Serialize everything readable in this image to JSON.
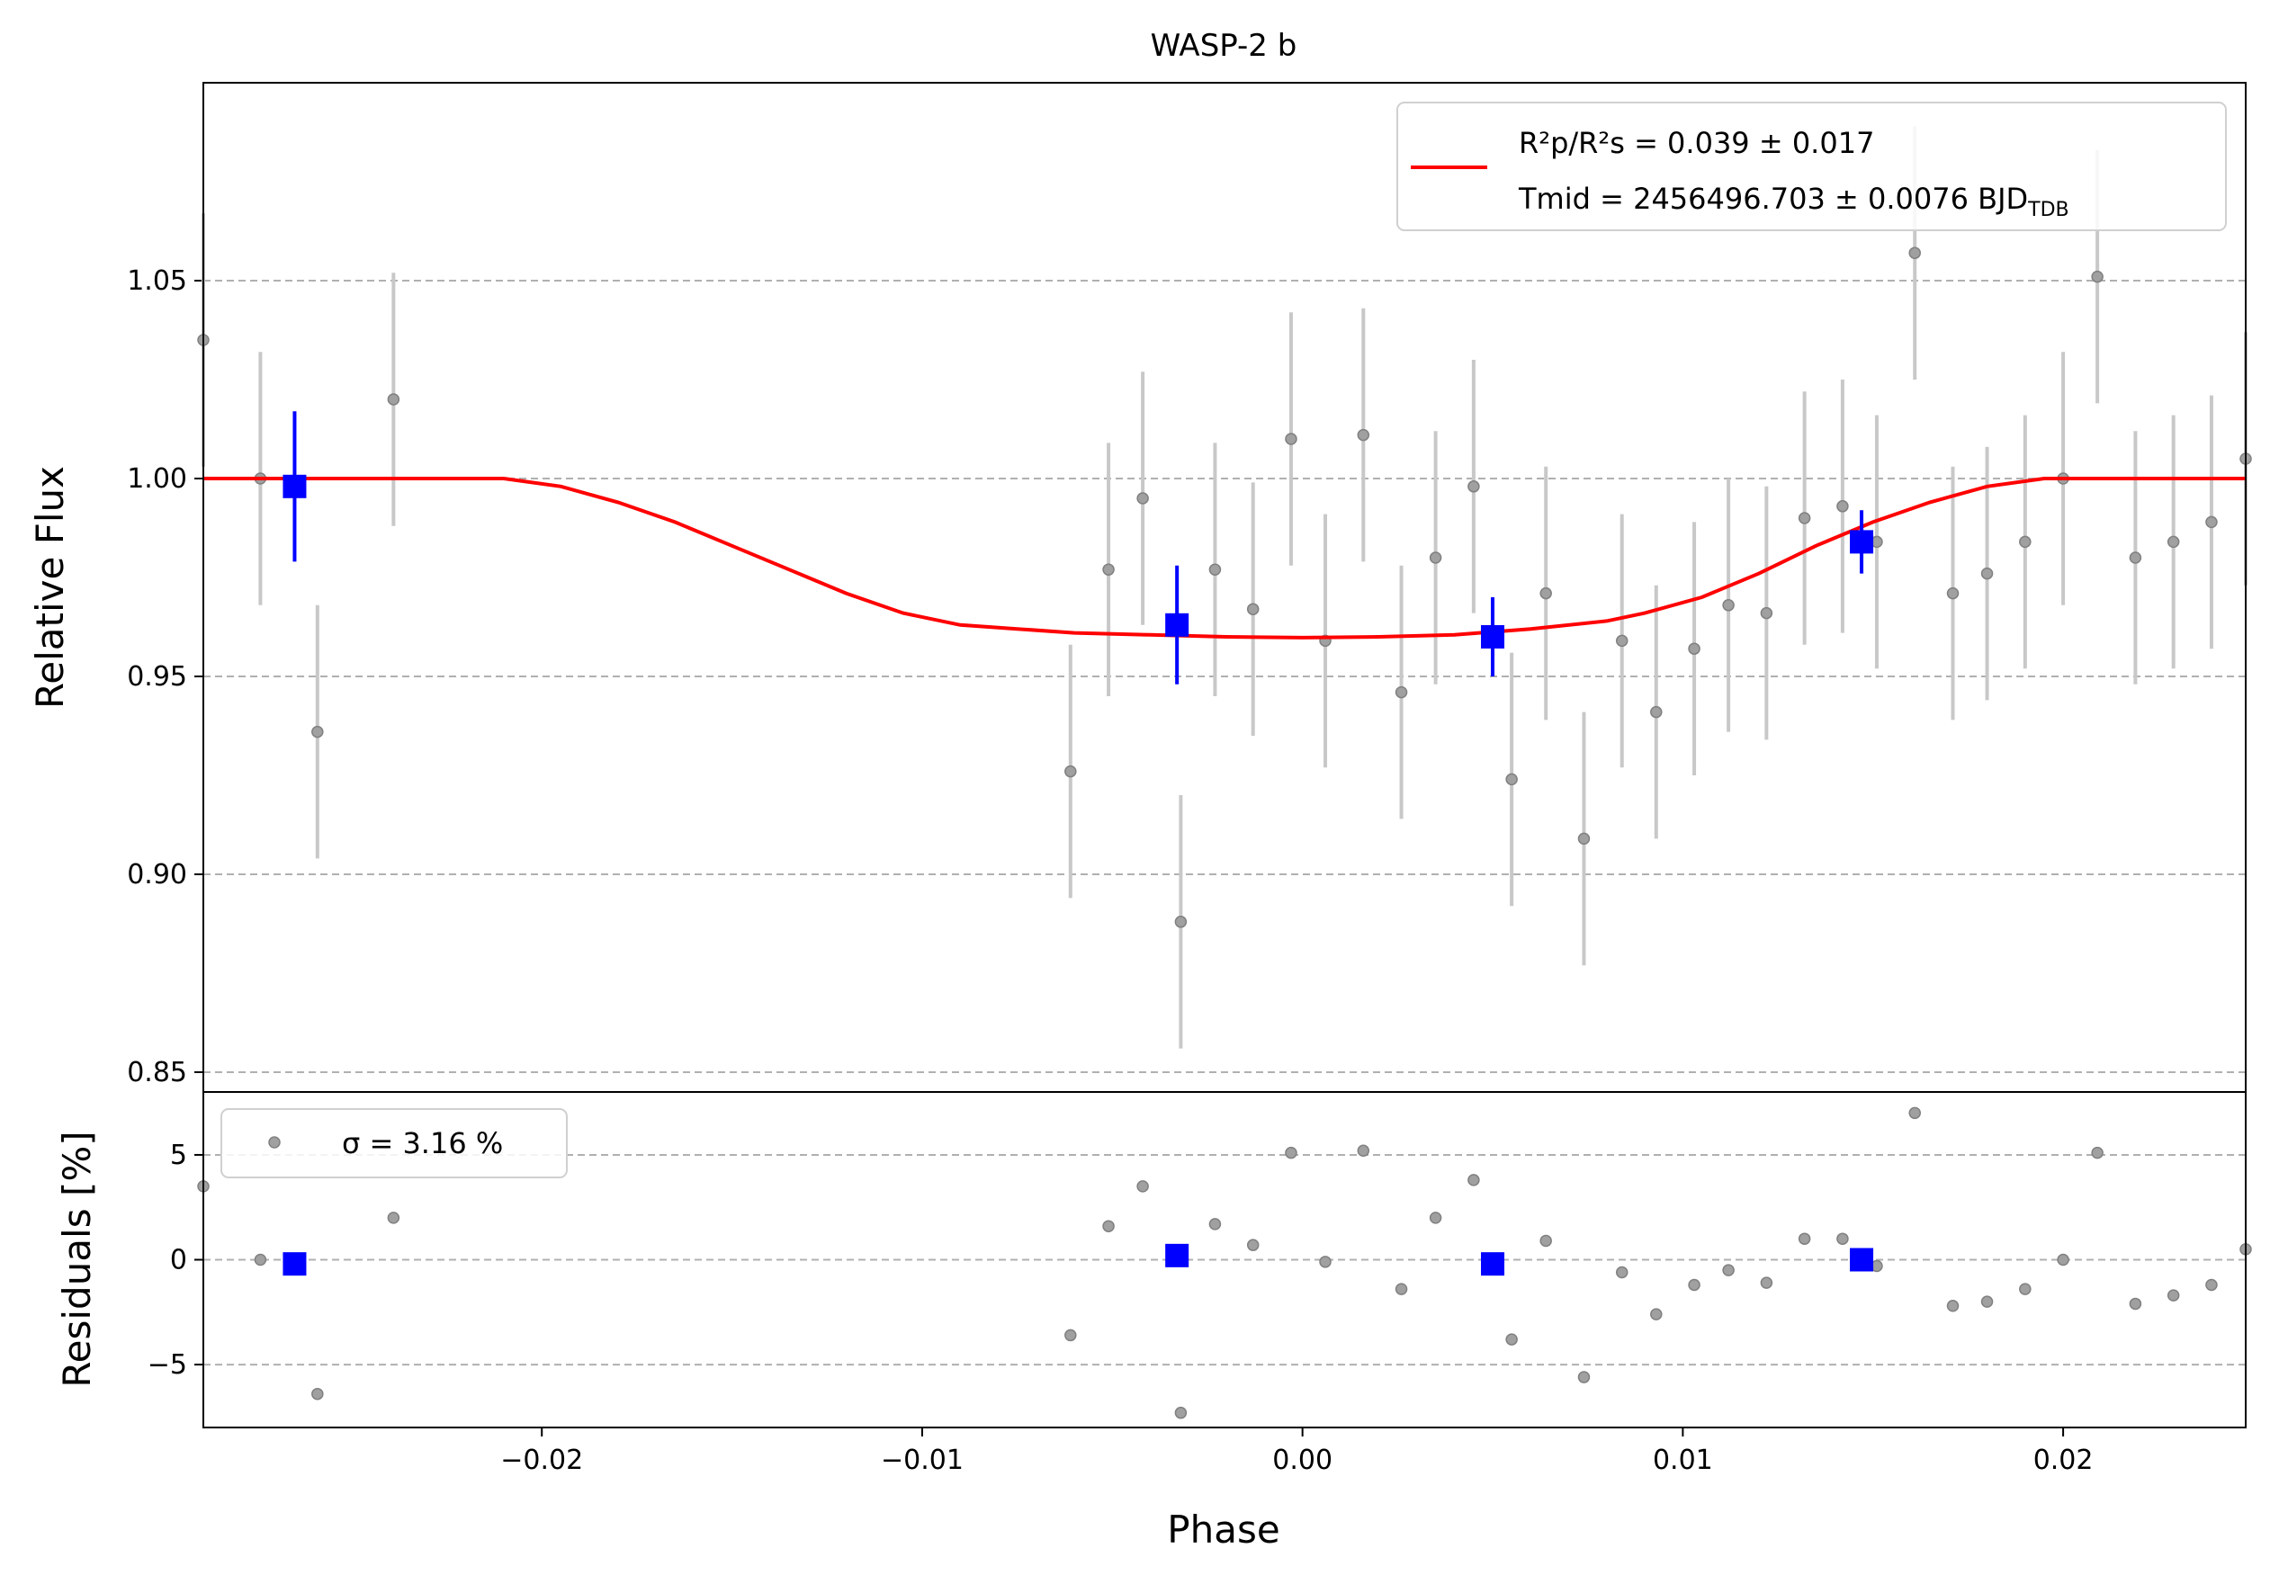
{
  "chart_data": [
    {
      "type": "scatter",
      "panel": "lightcurve",
      "title": "WASP-2 b",
      "xlabel": "",
      "ylabel": "Relative Flux",
      "xlim": [
        -0.0289,
        0.0248
      ],
      "ylim": [
        0.845,
        1.1
      ],
      "yticks": [
        0.85,
        0.9,
        0.95,
        1.0,
        1.05
      ],
      "yticklabels": [
        "0.85",
        "0.90",
        "0.95",
        "1.00",
        "1.05"
      ],
      "grid": "y-dashed",
      "legend": {
        "placement": "top-right",
        "line1": "R²p/R²s = 0.039 ± 0.017",
        "line2": "Tmid = 2456496.703 ± 0.0076 BJD",
        "line2_subscript": "TDB"
      },
      "series": [
        {
          "kind": "data",
          "color": "#808080",
          "errbar_color": "#c8c8c8",
          "x": [
            -0.0289,
            -0.0274,
            -0.0259,
            -0.0239,
            -0.0061,
            -0.0051,
            -0.0042,
            -0.0032,
            -0.0023,
            -0.0013,
            -0.0003,
            0.0006,
            0.0016,
            0.0026,
            0.0035,
            0.0045,
            0.0055,
            0.0064,
            0.0074,
            0.0084,
            0.0093,
            0.0103,
            0.0112,
            0.0122,
            0.0132,
            0.0142,
            0.0151,
            0.0161,
            0.0171,
            0.018,
            0.019,
            0.02,
            0.0219,
            0.0229,
            0.0239,
            0.0248,
            0.0209
          ],
          "y": [
            1.035,
            1.0,
            0.936,
            1.02,
            0.926,
            0.977,
            0.995,
            0.888,
            0.977,
            0.967,
            1.01,
            0.959,
            1.011,
            0.946,
            0.98,
            0.998,
            0.924,
            0.971,
            0.909,
            0.959,
            0.941,
            0.957,
            0.968,
            0.966,
            0.99,
            0.993,
            0.984,
            1.057,
            0.971,
            0.976,
            0.984,
            1.0,
            0.98,
            0.984,
            0.989,
            1.005,
            1.051
          ],
          "yerr": [
            0.032,
            0.032,
            0.032,
            0.032,
            0.032,
            0.032,
            0.032,
            0.032,
            0.032,
            0.032,
            0.032,
            0.032,
            0.032,
            0.032,
            0.032,
            0.032,
            0.032,
            0.032,
            0.032,
            0.032,
            0.032,
            0.032,
            0.032,
            0.032,
            0.032,
            0.032,
            0.032,
            0.032,
            0.032,
            0.032,
            0.032,
            0.032,
            0.032,
            0.032,
            0.032,
            0.032,
            0.032
          ]
        },
        {
          "kind": "binned",
          "color": "#0000ff",
          "x": [
            -0.0265,
            -0.0033,
            0.005,
            0.0147
          ],
          "y": [
            0.998,
            0.963,
            0.96,
            0.984
          ],
          "yerr": [
            0.019,
            0.015,
            0.01,
            0.008
          ]
        },
        {
          "kind": "model",
          "color": "#ff0000",
          "x": [
            -0.0289,
            -0.023,
            -0.021,
            -0.0195,
            -0.018,
            -0.0165,
            -0.015,
            -0.0135,
            -0.012,
            -0.0105,
            -0.009,
            -0.0075,
            -0.006,
            -0.004,
            -0.002,
            0.0,
            0.002,
            0.004,
            0.006,
            0.008,
            0.009,
            0.0105,
            0.012,
            0.0135,
            0.015,
            0.0165,
            0.018,
            0.0195,
            0.0209,
            0.0248
          ],
          "y": [
            1.0,
            1.0,
            1.0,
            0.998,
            0.994,
            0.989,
            0.983,
            0.977,
            0.971,
            0.966,
            0.963,
            0.962,
            0.961,
            0.9605,
            0.96,
            0.9598,
            0.96,
            0.9605,
            0.962,
            0.964,
            0.966,
            0.97,
            0.976,
            0.983,
            0.989,
            0.994,
            0.998,
            1.0,
            1.0,
            1.0
          ]
        }
      ]
    },
    {
      "type": "scatter",
      "panel": "residuals",
      "xlabel": "Phase",
      "ylabel": "Residuals [%]",
      "xlim": [
        -0.0289,
        0.0248
      ],
      "ylim": [
        -8.0,
        8.0
      ],
      "xticks": [
        -0.02,
        -0.01,
        0.0,
        0.01,
        0.02
      ],
      "xticklabels": [
        "−0.02",
        "−0.01",
        "0.00",
        "0.01",
        "0.02"
      ],
      "yticks": [
        -5,
        0,
        5
      ],
      "yticklabels": [
        "−5",
        "0",
        "5"
      ],
      "grid": "y-dashed",
      "legend": {
        "placement": "top-left",
        "label": "σ = 3.16 %"
      },
      "series": [
        {
          "kind": "data",
          "color": "#808080",
          "x": [
            -0.0289,
            -0.0274,
            -0.0259,
            -0.0239,
            -0.0061,
            -0.0051,
            -0.0042,
            -0.0032,
            -0.0023,
            -0.0013,
            -0.0003,
            0.0006,
            0.0016,
            0.0026,
            0.0035,
            0.0045,
            0.0055,
            0.0064,
            0.0074,
            0.0084,
            0.0093,
            0.0103,
            0.0112,
            0.0122,
            0.0132,
            0.0142,
            0.0151,
            0.0161,
            0.0171,
            0.018,
            0.019,
            0.02,
            0.0219,
            0.0229,
            0.0239,
            0.0248,
            0.0209
          ],
          "y": [
            3.5,
            0.0,
            -6.4,
            2.0,
            -3.6,
            1.6,
            3.5,
            -7.3,
            1.7,
            0.7,
            5.1,
            -0.1,
            5.2,
            -1.4,
            2.0,
            3.8,
            -3.8,
            0.9,
            -5.6,
            -0.6,
            -2.6,
            -1.2,
            -0.5,
            -1.1,
            1.0,
            1.0,
            -0.3,
            7.0,
            -2.2,
            -2.0,
            -1.4,
            0.0,
            -2.1,
            -1.7,
            -1.2,
            0.5,
            5.1
          ]
        },
        {
          "kind": "binned",
          "color": "#0000ff",
          "x": [
            -0.0265,
            -0.0033,
            0.005,
            0.0147
          ],
          "y": [
            -0.2,
            0.2,
            -0.2,
            0.0
          ]
        }
      ]
    }
  ]
}
